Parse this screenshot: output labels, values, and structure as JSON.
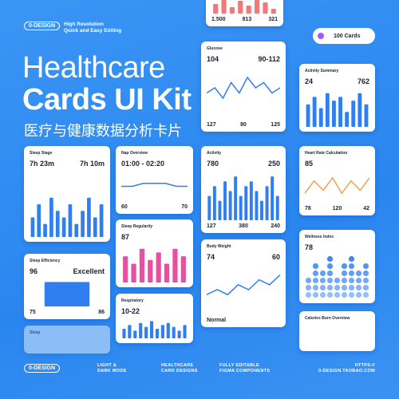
{
  "header": {
    "logo": "0-DESIGN",
    "tagline": [
      "High Resolution",
      "Quick and Easy Editing"
    ],
    "title": "Healthcare",
    "title_bold": "Cards UI Kit",
    "subtitle": "医疗与健康数据分析卡片",
    "badge": "100 Cards"
  },
  "cards": [
    {
      "stats2": [
        "1.500",
        "813",
        "321"
      ],
      "chart": {
        "type": "bar",
        "values": [
          6,
          9,
          4,
          8,
          5,
          9,
          7,
          3
        ],
        "ylim": [
          0,
          10
        ],
        "color": "#f07a7a"
      }
    },
    {
      "title": "Glucose",
      "stats": [
        "104",
        "90-112"
      ],
      "stats2": [
        "127",
        "80",
        "125"
      ],
      "chart": {
        "type": "line",
        "values": [
          5,
          6,
          4,
          7,
          5,
          8,
          6,
          7,
          5,
          6
        ],
        "ylim": [
          0,
          10
        ],
        "color": "#2f7ff0"
      }
    },
    {
      "title": "Activity Summary",
      "stats": [
        "24",
        "762"
      ],
      "chart": {
        "type": "bar",
        "values": [
          6,
          8,
          5,
          9,
          7,
          8,
          4,
          7,
          9,
          6
        ],
        "ylim": [
          0,
          10
        ],
        "color": "#2f7ff0"
      }
    },
    {
      "title": "Sleep Stage",
      "stats": [
        "7h 23m",
        "7h 10m"
      ],
      "chart": {
        "type": "bar",
        "values": [
          3,
          5,
          2,
          6,
          4,
          3,
          5,
          2,
          4,
          6,
          3,
          5
        ],
        "ylim": [
          0,
          10
        ],
        "color": "#2f7ff0"
      }
    },
    {
      "title": "Nap Overview",
      "stats": [
        "01:00 - 02:20"
      ],
      "stats2": [
        "60",
        "70"
      ],
      "chart": {
        "type": "line",
        "values": [
          5,
          5,
          6,
          6,
          6,
          5,
          5
        ],
        "ylim": [
          0,
          10
        ],
        "color": "#2f7ff0"
      }
    },
    {
      "title": "Activity",
      "stats": [
        "780",
        "250"
      ],
      "stats2": [
        "127",
        "380",
        "240"
      ],
      "chart": {
        "type": "bar",
        "values": [
          5,
          7,
          4,
          8,
          6,
          9,
          5,
          7,
          8,
          6,
          4,
          7,
          9,
          5
        ],
        "ylim": [
          0,
          10
        ],
        "color": "#2f7ff0"
      }
    },
    {
      "title": "Heart Rate Calculation",
      "stats": [
        "85"
      ],
      "stats2": [
        "78",
        "120",
        "42"
      ],
      "chart": {
        "type": "line",
        "values": [
          3,
          7,
          4,
          8,
          3,
          7,
          4,
          8
        ],
        "ylim": [
          0,
          10
        ],
        "color": "#f0a050"
      }
    },
    {
      "title": "Sleep Regularity",
      "stats": [
        "87"
      ],
      "chart": {
        "type": "bar",
        "values": [
          7,
          5,
          9,
          6,
          8,
          5,
          9,
          7
        ],
        "ylim": [
          0,
          10
        ],
        "color": "#e84fa0"
      }
    },
    {
      "title": "Body Weight",
      "stats": [
        "74",
        "60"
      ],
      "stats2": [
        "Normal"
      ],
      "chart": {
        "type": "line",
        "values": [
          4,
          5,
          4,
          6,
          5,
          7,
          6,
          8
        ],
        "ylim": [
          0,
          10
        ],
        "color": "#2f7ff0"
      }
    },
    {
      "title": "Wellness Index",
      "stats": [
        "78"
      ],
      "chart": {
        "type": "dots",
        "values": [
          3,
          5,
          4,
          6,
          3,
          5,
          6,
          4,
          5
        ],
        "ylim": [
          0,
          6
        ],
        "color": "#2f7ff0"
      }
    },
    {
      "title": "Sleep Efficiency",
      "stats": [
        "96",
        "Excellent"
      ],
      "stats2": [
        "75",
        "86"
      ],
      "chart": {
        "type": "bar",
        "values": [
          9
        ],
        "ylim": [
          0,
          10
        ],
        "color": "#2f7ff0"
      }
    },
    {
      "title": "Respiratory",
      "stats": [
        "10-22"
      ],
      "chart": {
        "type": "bar",
        "values": [
          5,
          7,
          4,
          8,
          6,
          9,
          5,
          7,
          8,
          6,
          4,
          7
        ],
        "ylim": [
          0,
          10
        ],
        "color": "#2f7ff0"
      }
    },
    {
      "title": "Calories Burn Overview"
    },
    {
      "title": "Sleep"
    }
  ],
  "footer": {
    "logo": "0-DESIGN",
    "items": [
      [
        "LIGHT &",
        "DARK MODE"
      ],
      [
        "HEALTHCARE",
        "CARD DESIGNS"
      ],
      [
        "FULLY EDITABLE",
        "FIGMA COMPONENTS"
      ],
      [
        "HTTPS://",
        "0-DESIGN.TAOBAO.COM"
      ]
    ]
  }
}
